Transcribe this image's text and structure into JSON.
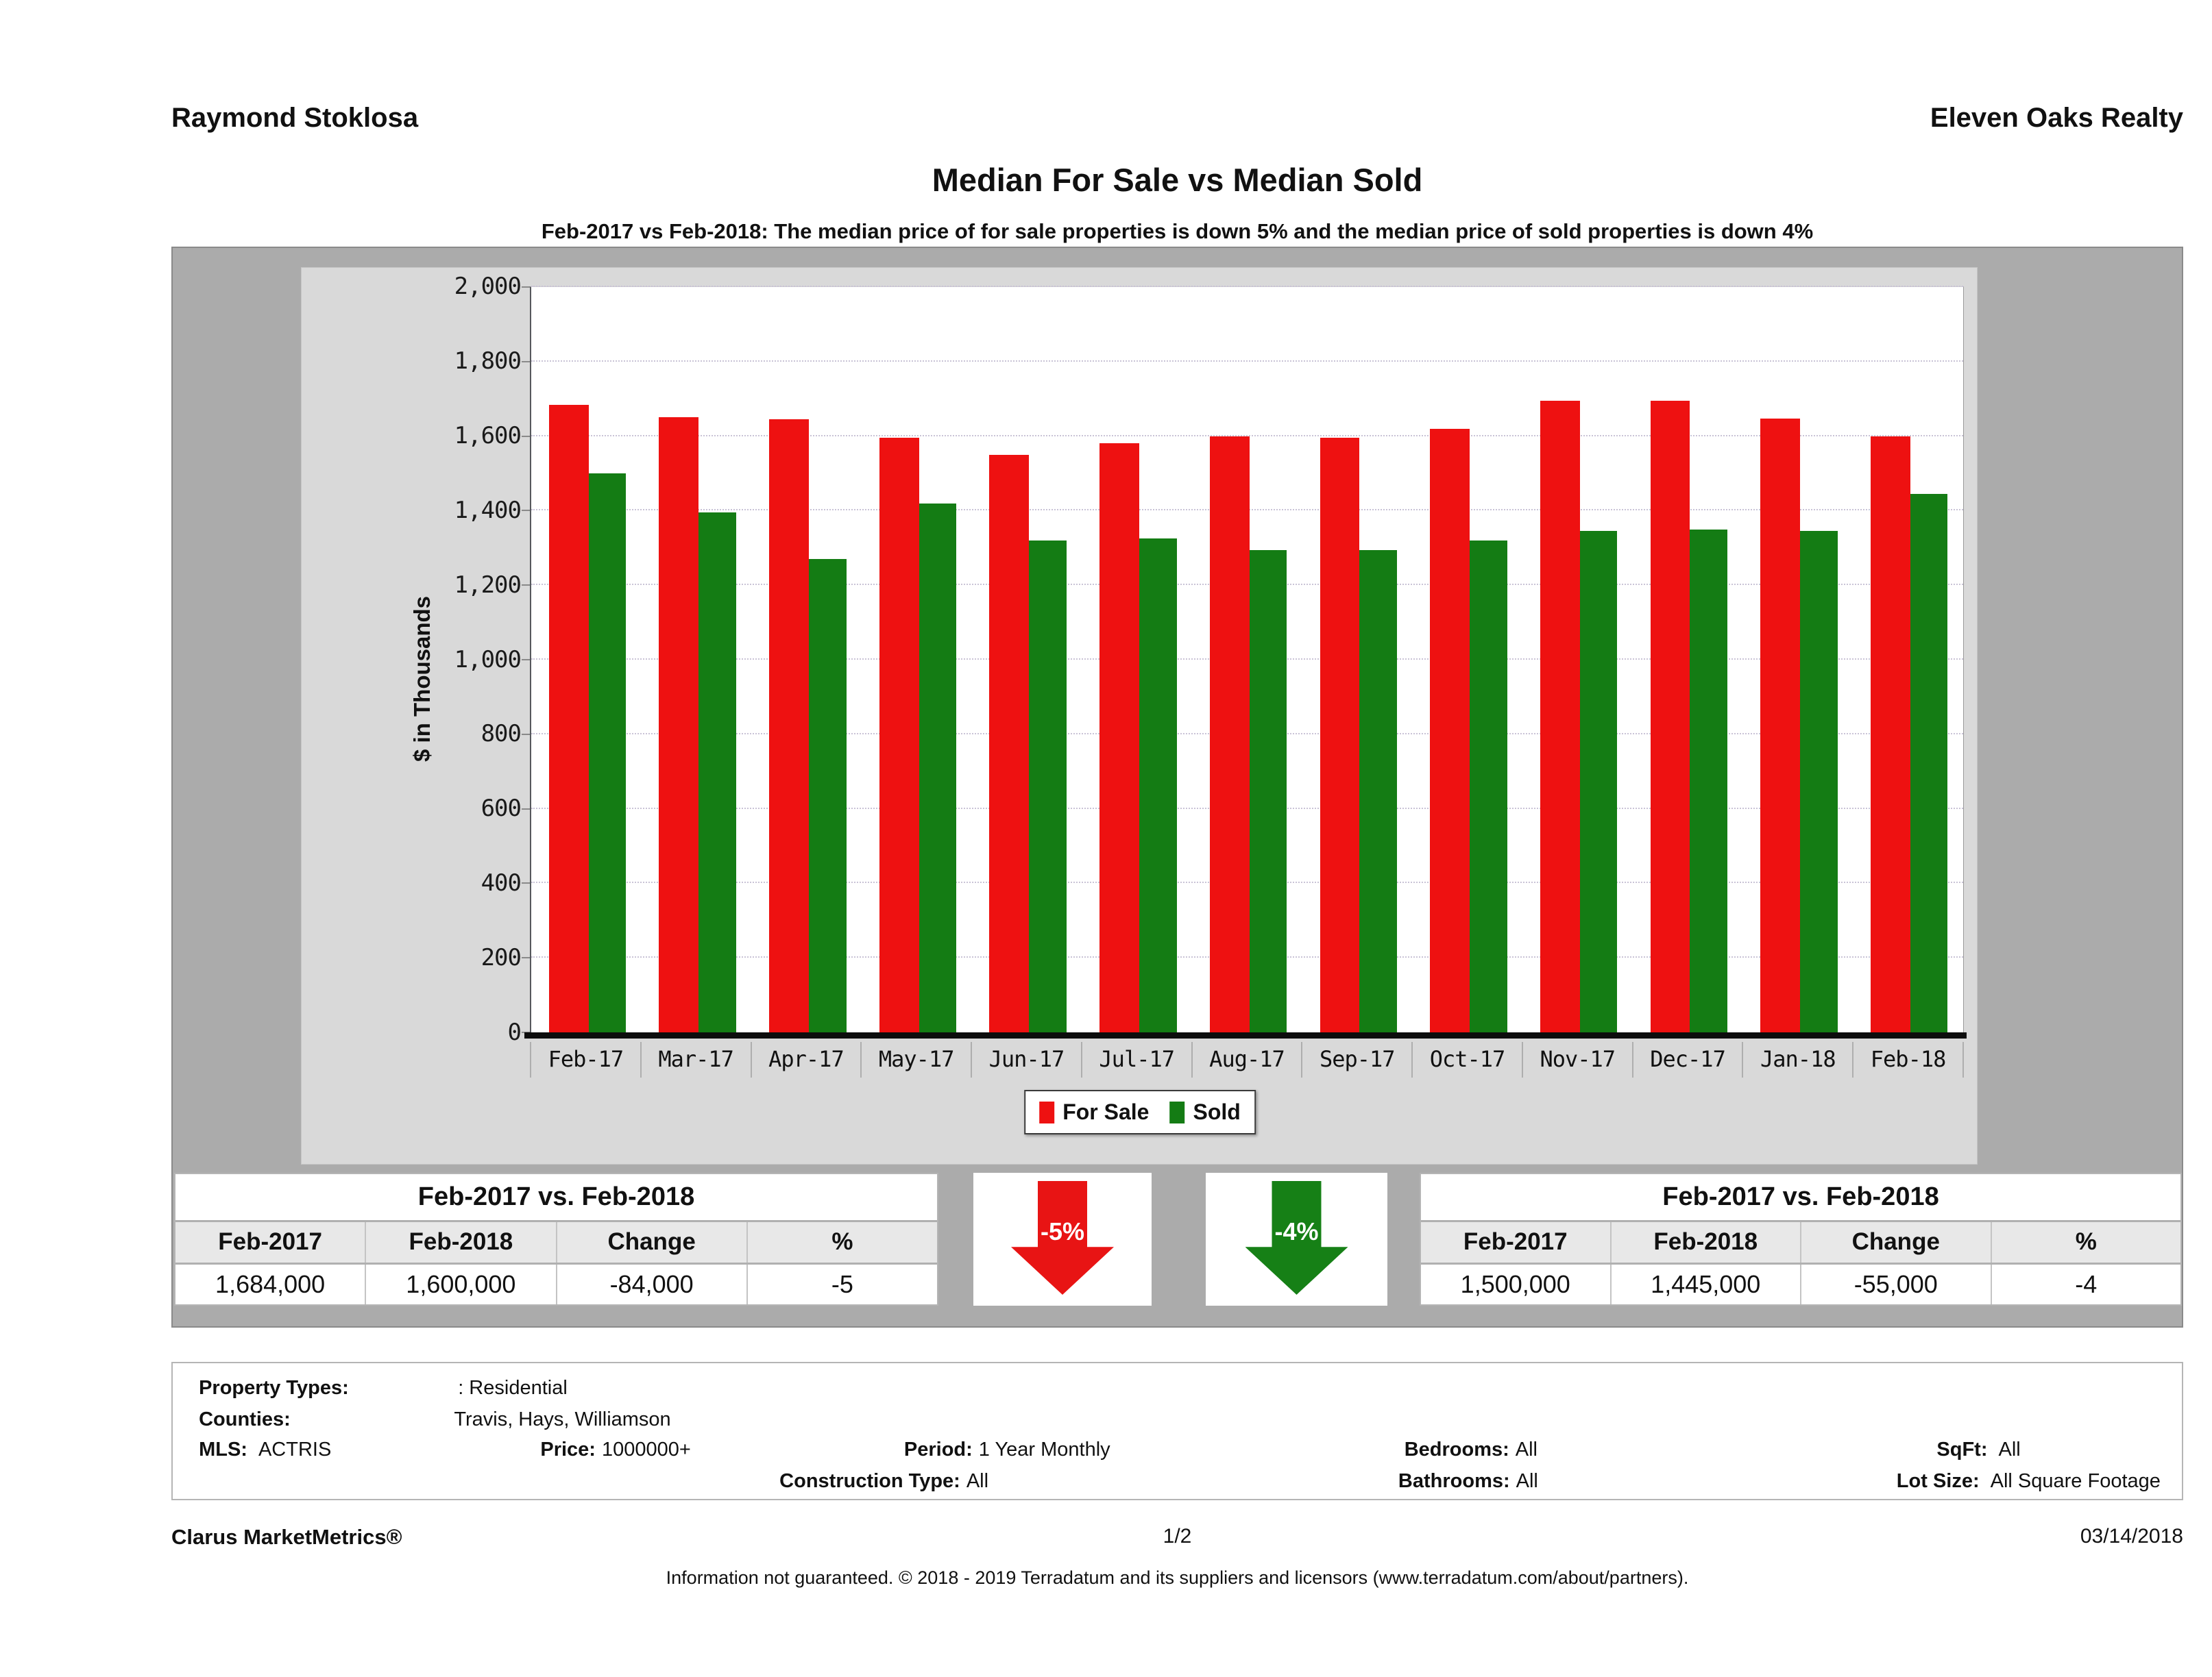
{
  "header": {
    "agent": "Raymond Stoklosa",
    "company": "Eleven Oaks Realty"
  },
  "title": "Median For Sale vs Median Sold",
  "subtitle": "Feb-2017 vs Feb-2018: The median price of for sale properties is down 5% and the median price of sold properties is down 4%",
  "chart_data": {
    "type": "bar",
    "categories": [
      "Feb-17",
      "Mar-17",
      "Apr-17",
      "May-17",
      "Jun-17",
      "Jul-17",
      "Aug-17",
      "Sep-17",
      "Oct-17",
      "Nov-17",
      "Dec-17",
      "Jan-18",
      "Feb-18"
    ],
    "series": [
      {
        "name": "For Sale",
        "color": "#ee1111",
        "values": [
          1684,
          1650,
          1645,
          1595,
          1550,
          1580,
          1600,
          1595,
          1620,
          1695,
          1695,
          1648,
          1600
        ]
      },
      {
        "name": "Sold",
        "color": "#147c14",
        "values": [
          1500,
          1395,
          1270,
          1420,
          1320,
          1325,
          1295,
          1295,
          1320,
          1345,
          1350,
          1345,
          1445
        ]
      }
    ],
    "title": "Median For Sale vs Median Sold",
    "xlabel": "",
    "ylabel": "$ in Thousands",
    "ylim": [
      0,
      2000
    ],
    "ytick_step": 200,
    "grid": true,
    "legend_position": "bottom",
    "units": "thousands of dollars"
  },
  "comparison_tables": {
    "for_sale": {
      "title": "Feb-2017 vs. Feb-2018",
      "headers": [
        "Feb-2017",
        "Feb-2018",
        "Change",
        "%"
      ],
      "values": [
        "1,684,000",
        "1,600,000",
        "-84,000",
        "-5"
      ]
    },
    "sold": {
      "title": "Feb-2017 vs. Feb-2018",
      "headers": [
        "Feb-2017",
        "Feb-2018",
        "Change",
        "%"
      ],
      "values": [
        "1,500,000",
        "1,445,000",
        "-55,000",
        "-4"
      ]
    }
  },
  "arrows": {
    "for_sale": {
      "label": "-5%",
      "color": "#e81414",
      "direction": "down"
    },
    "sold": {
      "label": "-4%",
      "color": "#168016",
      "direction": "down"
    }
  },
  "filters": {
    "property_types": {
      "label": "Property Types:",
      "value": ": Residential"
    },
    "counties": {
      "label": "Counties:",
      "value": "Travis, Hays, Williamson"
    },
    "mls": {
      "label": "MLS:",
      "value": "ACTRIS"
    },
    "price": {
      "label": "Price:",
      "value": "1000000+"
    },
    "period": {
      "label": "Period:",
      "value": "1 Year Monthly"
    },
    "construction_type": {
      "label": "Construction Type:",
      "value": "All"
    },
    "bedrooms": {
      "label": "Bedrooms:",
      "value": "All"
    },
    "bathrooms": {
      "label": "Bathrooms:",
      "value": "All"
    },
    "sqft": {
      "label": "SqFt:",
      "value": "All"
    },
    "lot_size": {
      "label": "Lot Size:",
      "value": "All Square Footage"
    }
  },
  "footer": {
    "brand": "Clarus MarketMetrics®",
    "page": "1/2",
    "date": "03/14/2018",
    "disclaimer": "Information not guaranteed. © 2018 - 2019 Terradatum and its suppliers and licensors (www.terradatum.com/about/partners)."
  }
}
